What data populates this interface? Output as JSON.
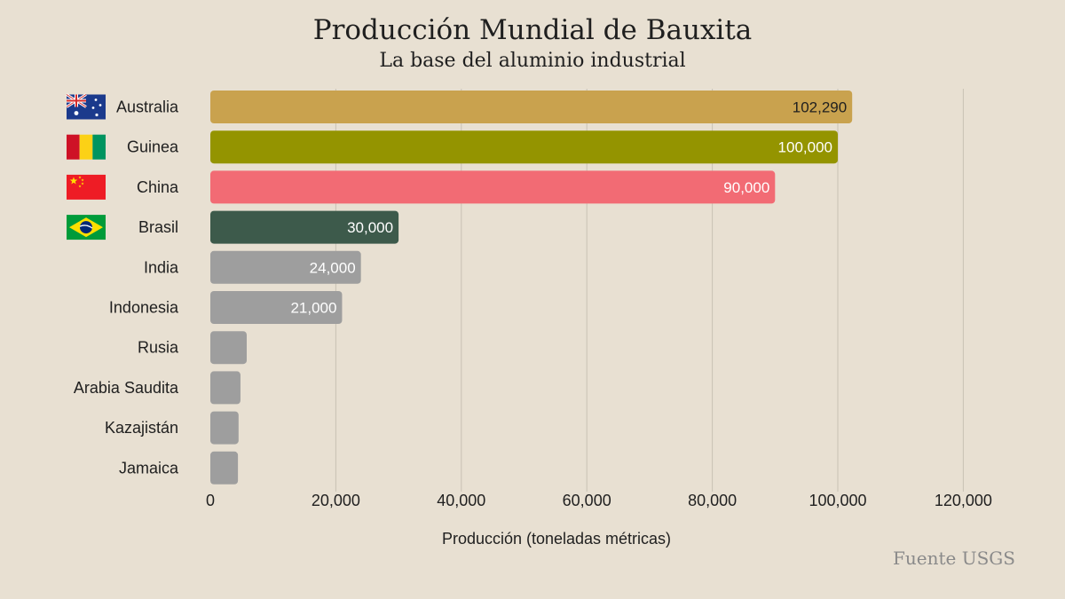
{
  "title": "Producción Mundial de Bauxita",
  "subtitle": "La base del aluminio industrial",
  "source": "Fuente USGS",
  "chart_data": {
    "type": "bar",
    "orientation": "horizontal",
    "title": "Producción Mundial de Bauxita",
    "subtitle": "La base del aluminio industrial",
    "xlabel": "Producción (toneladas métricas)",
    "ylabel": "",
    "xlim": [
      0,
      120000
    ],
    "xticks": [
      "0",
      "20,000",
      "40,000",
      "60,000",
      "80,000",
      "100,000",
      "120,000"
    ],
    "xtick_values": [
      0,
      20000,
      40000,
      60000,
      80000,
      100000,
      120000
    ],
    "grid": "vertical",
    "categories": [
      "Australia",
      "Guinea",
      "China",
      "Brasil",
      "India",
      "Indonesia",
      "Rusia",
      "Arabia Saudita",
      "Kazajistán",
      "Jamaica"
    ],
    "values": [
      102290,
      100000,
      90000,
      30000,
      24000,
      21000,
      5800,
      4800,
      4500,
      4400
    ],
    "value_labels": [
      "102,290",
      "100,000",
      "90,000",
      "30,000",
      "24,000",
      "21,000",
      "",
      "",
      "",
      ""
    ],
    "colors": [
      "#c9a24e",
      "#949400",
      "#f26b74",
      "#3d5a4b",
      "#9e9e9e",
      "#9e9e9e",
      "#9e9e9e",
      "#9e9e9e",
      "#9e9e9e",
      "#9e9e9e"
    ],
    "label_colors": [
      "#1f1f1f",
      "#ffffff",
      "#ffffff",
      "#ffffff",
      "#ffffff",
      "#ffffff",
      "#ffffff",
      "#ffffff",
      "#ffffff",
      "#ffffff"
    ],
    "flags": [
      "australia-flag",
      "guinea-flag",
      "china-flag",
      "brazil-flag",
      "",
      "",
      "",
      "",
      "",
      ""
    ]
  }
}
